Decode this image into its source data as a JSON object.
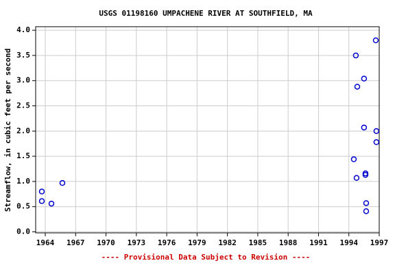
{
  "chart_data": {
    "type": "scatter",
    "title": "USGS 01198160 UMPACHENE RIVER AT SOUTHFIELD, MA",
    "y_label": "Streamflow, in cubic feet per second",
    "footnote": "---- Provisional Data Subject to Revision ----",
    "x": [
      1963.66,
      1963.66,
      1964.61,
      1965.69,
      1994.49,
      1994.69,
      1994.76,
      1994.83,
      1995.5,
      1995.5,
      1995.64,
      1995.64,
      1995.71,
      1995.71,
      1996.66,
      1996.72,
      1996.72
    ],
    "values": [
      0.8,
      0.61,
      0.56,
      0.97,
      1.44,
      3.5,
      1.07,
      2.88,
      3.04,
      2.07,
      1.16,
      1.13,
      0.57,
      0.41,
      3.8,
      2.0,
      1.78
    ],
    "color": "#0000cc",
    "xlim": [
      1963.05,
      1997
    ],
    "xticks": [
      1964,
      1967,
      1970,
      1973,
      1976,
      1979,
      1982,
      1985,
      1988,
      1991,
      1994,
      1997
    ],
    "ylim": [
      -0.02,
      4.07
    ],
    "yticks": [
      {
        "value": 0,
        "label": "0.0"
      },
      {
        "value": 0.5,
        "label": "0.5"
      },
      {
        "value": 1,
        "label": "1.0"
      },
      {
        "value": 1.5,
        "label": "1.5"
      },
      {
        "value": 2,
        "label": "2.0"
      },
      {
        "value": 2.5,
        "label": "2.5"
      },
      {
        "value": 3,
        "label": "3.0"
      },
      {
        "value": 3.5,
        "label": "3.5"
      },
      {
        "value": 4,
        "label": "4.0"
      }
    ],
    "grid": true
  }
}
